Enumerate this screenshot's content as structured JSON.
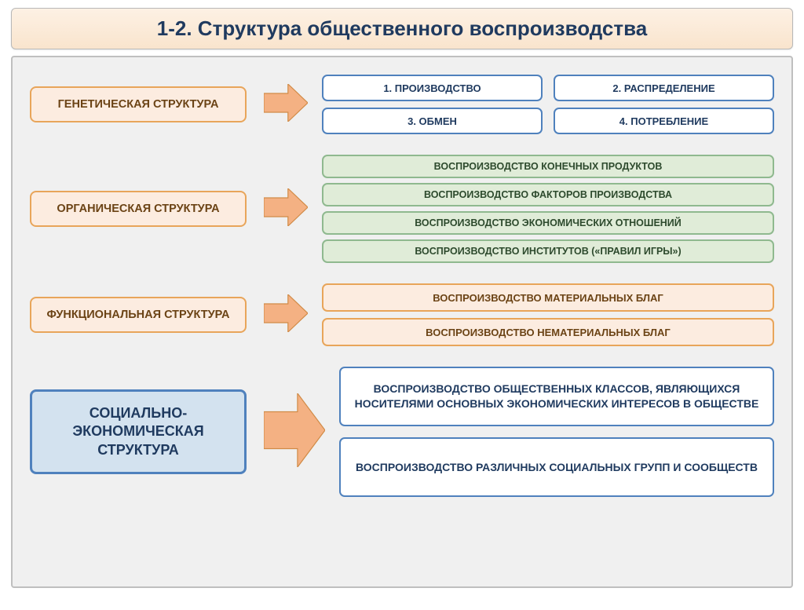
{
  "title": "1-2. Структура общественного воспроизводства",
  "colors": {
    "title_text": "#1f3a5f",
    "title_bg_top": "#fdf1e4",
    "title_bg_bottom": "#f9e4cd",
    "content_bg": "#f0f0f0",
    "content_border": "#bfbfbf",
    "arrow_fill": "#f4b183",
    "arrow_stroke": "#d18b47",
    "orange_border": "#e8a55a",
    "orange_fill": "#fcece0",
    "orange_text": "#6b4315",
    "green_border": "#8fb98f",
    "green_fill": "#e0ecd8",
    "green_text": "#2d4a2d",
    "blue_border": "#4f81bd",
    "blue_fill": "#d3e2ef",
    "white_border": "#4f81bd",
    "white_text": "#1f3a5f"
  },
  "rows": [
    {
      "left": {
        "label": "ГЕНЕТИЧЕСКАЯ СТРУКТУРА",
        "style": "orange",
        "size": "small"
      },
      "arrow": "small",
      "right_layout": "grid2x2",
      "items": [
        {
          "label": "1. ПРОИЗВОДСТВО",
          "style": "white"
        },
        {
          "label": "2. РАСПРЕДЕЛЕНИЕ",
          "style": "white"
        },
        {
          "label": "3. ОБМЕН",
          "style": "white"
        },
        {
          "label": "4. ПОТРЕБЛЕНИЕ",
          "style": "white"
        }
      ]
    },
    {
      "left": {
        "label": "ОРГАНИЧЕСКАЯ СТРУКТУРА",
        "style": "orange",
        "size": "small"
      },
      "arrow": "small",
      "right_layout": "stack",
      "items": [
        {
          "label": "ВОСПРОИЗВОДСТВО КОНЕЧНЫХ ПРОДУКТОВ",
          "style": "green"
        },
        {
          "label": "ВОСПРОИЗВОДСТВО ФАКТОРОВ ПРОИЗВОДСТВА",
          "style": "green"
        },
        {
          "label": "ВОСПРОИЗВОДСТВО ЭКОНОМИЧЕСКИХ ОТНОШЕНИЙ",
          "style": "green"
        },
        {
          "label": "ВОСПРОИЗВОДСТВО ИНСТИТУТОВ («ПРАВИЛ ИГРЫ»)",
          "style": "green"
        }
      ]
    },
    {
      "left": {
        "label": "ФУНКЦИОНАЛЬНАЯ СТРУКТУРА",
        "style": "orange",
        "size": "small"
      },
      "arrow": "small",
      "right_layout": "stack",
      "items": [
        {
          "label": "ВОСПРОИЗВОДСТВО МАТЕРИАЛЬНЫХ БЛАГ",
          "style": "orange-item"
        },
        {
          "label": "ВОСПРОИЗВОДСТВО НЕМАТЕРИАЛЬНЫХ БЛАГ",
          "style": "orange-item"
        }
      ]
    },
    {
      "left": {
        "label": "СОЦИАЛЬНО-ЭКОНОМИЧЕСКАЯ СТРУКТУРА",
        "style": "blue",
        "size": "big"
      },
      "arrow": "big",
      "right_layout": "stack-big",
      "items": [
        {
          "label": "ВОСПРОИЗВОДСТВО ОБЩЕСТВЕННЫХ КЛАССОВ, ЯВЛЯЮЩИХСЯ НОСИТЕЛЯМИ ОСНОВНЫХ ЭКОНОМИЧЕСКИХ ИНТЕРЕСОВ В ОБЩЕСТВЕ",
          "style": "white-big"
        },
        {
          "label": "ВОСПРОИЗВОДСТВО РАЗЛИЧНЫХ СОЦИАЛЬНЫХ ГРУПП И СООБЩЕСТВ",
          "style": "white-big"
        }
      ]
    }
  ]
}
